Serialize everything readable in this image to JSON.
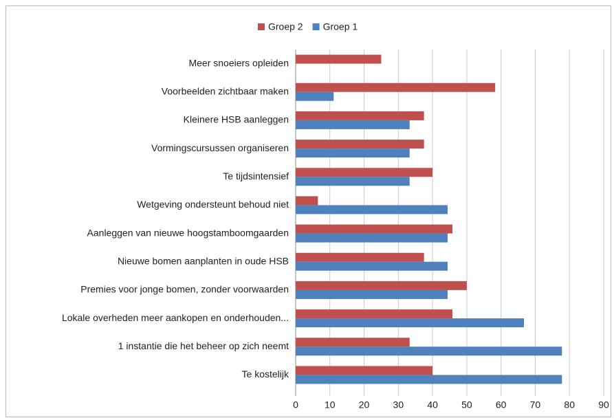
{
  "chart_data": {
    "type": "bar",
    "orientation": "horizontal",
    "categories": [
      "Meer snoeiers opleiden",
      "Voorbeelden zichtbaar maken",
      "Kleinere HSB aanleggen",
      "Vormingscursussen organiseren",
      "Te tijdsintensief",
      "Wetgeving ondersteunt behoud niet",
      "Aanleggen van nieuwe hoogstamboomgaarden",
      "Nieuwe bomen aanplanten in oude HSB",
      "Premies voor jonge bomen, zonder voorwaarden",
      "Lokale overheden meer aankopen en onderhouden...",
      "1 instantie die het beheer op zich neemt",
      "Te kostelijk"
    ],
    "series": [
      {
        "name": "Groep 2",
        "color": "#c0504d",
        "values": [
          25,
          58.3,
          37.5,
          37.5,
          40,
          6.5,
          45.8,
          37.5,
          50,
          45.8,
          33.3,
          40
        ]
      },
      {
        "name": "Groep 1",
        "color": "#4f81bd",
        "values": [
          null,
          11.1,
          33.3,
          33.3,
          33.3,
          44.4,
          44.4,
          44.4,
          44.4,
          66.7,
          77.8,
          77.8
        ]
      }
    ],
    "xlim": [
      0,
      90
    ],
    "xticks": [
      0,
      10,
      20,
      30,
      40,
      50,
      60,
      70,
      80,
      90
    ],
    "grid": true,
    "legend": "top"
  }
}
